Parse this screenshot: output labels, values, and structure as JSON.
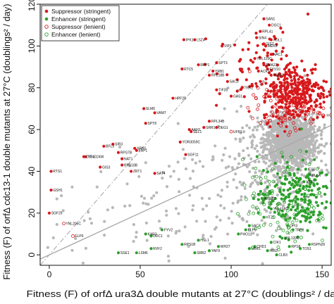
{
  "colors": {
    "suppressor": "#d7191c",
    "enhancer": "#2ca02c",
    "neutral": "#b8b8b8",
    "regression_line": "#aaaaaa",
    "axis": "#111111"
  },
  "chart_data": {
    "type": "scatter",
    "title": "",
    "xlabel": "Fitness (F) of orfΔ ura3Δ double mutants at 27°C (doublings² / day)",
    "ylabel": "Fitness (F) of orfΔ cdc13-1 double mutants at 27°C (doublings² / day)",
    "xlim": [
      -5,
      155
    ],
    "ylim": [
      -5,
      120
    ],
    "x_ticks": [
      0,
      50,
      100,
      150
    ],
    "y_ticks": [
      0,
      20,
      40,
      60,
      80,
      100,
      120
    ],
    "legend": {
      "position": "top-left",
      "entries": [
        {
          "label": "Suppressor (stringent)",
          "marker": "filled",
          "color": "#d7191c"
        },
        {
          "label": "Enhancer (stringent)",
          "marker": "filled",
          "color": "#2ca02c"
        },
        {
          "label": "Suppressor (lenient)",
          "marker": "open",
          "color": "#d7191c"
        },
        {
          "label": "Enhancer (lenient)",
          "marker": "open",
          "color": "#2ca02c"
        }
      ]
    },
    "reference_lines": [
      {
        "name": "identity",
        "style": "dot-dash",
        "slope": 1,
        "intercept": 0
      },
      {
        "name": "regression",
        "style": "solid",
        "slope": 0.4,
        "intercept": 0
      }
    ],
    "clusters": [
      {
        "class": "neutral",
        "cx": 133,
        "cy": 55,
        "sx": 7,
        "sy": 6,
        "n": 1200
      },
      {
        "class": "neutral",
        "cx": 125,
        "cy": 45,
        "sx": 18,
        "sy": 14,
        "n": 320
      },
      {
        "class": "neutral",
        "cx": 70,
        "cy": 22,
        "sx": 35,
        "sy": 14,
        "n": 140
      },
      {
        "class": "suppressor_strict",
        "cx": 135,
        "cy": 78,
        "sx": 9,
        "sy": 7,
        "n": 320
      },
      {
        "class": "suppressor_strict",
        "cx": 120,
        "cy": 88,
        "sx": 14,
        "sy": 10,
        "n": 80
      },
      {
        "class": "suppressor_lenient",
        "cx": 130,
        "cy": 70,
        "sx": 10,
        "sy": 5,
        "n": 90
      },
      {
        "class": "enhancer_strict",
        "cx": 135,
        "cy": 28,
        "sx": 10,
        "sy": 9,
        "n": 200
      },
      {
        "class": "enhancer_lenient",
        "cx": 130,
        "cy": 25,
        "sx": 12,
        "sy": 11,
        "n": 110
      }
    ],
    "points": [
      {
        "x": 1,
        "y": 40,
        "class": "suppressor_strict",
        "label": "RTS1"
      },
      {
        "x": 1,
        "y": 31,
        "class": "suppressor_strict",
        "label": "GSH1"
      },
      {
        "x": 0,
        "y": 20,
        "class": "suppressor_strict",
        "label": "SGF29"
      },
      {
        "x": 8,
        "y": 15,
        "class": "suppressor_lenient",
        "label": "YNL205C"
      },
      {
        "x": 13,
        "y": 9,
        "class": "suppressor_lenient",
        "label": "ELP6"
      },
      {
        "x": 20,
        "y": 47,
        "class": "suppressor_strict",
        "label": "YGL024W"
      },
      {
        "x": 19,
        "y": 47,
        "class": "suppressor_strict",
        "label": "CTF4"
      },
      {
        "x": 28,
        "y": 42,
        "class": "suppressor_strict",
        "label": "GIS3"
      },
      {
        "x": 30,
        "y": 52,
        "class": "suppressor_strict",
        "label": "BFL3"
      },
      {
        "x": 35,
        "y": 53,
        "class": "suppressor_strict",
        "label": "SIR3"
      },
      {
        "x": 40,
        "y": 46,
        "class": "suppressor_strict",
        "label": "NAT1"
      },
      {
        "x": 40,
        "y": 43,
        "class": "suppressor_strict",
        "label": "RPS18B"
      },
      {
        "x": 38,
        "y": 49,
        "class": "suppressor_strict",
        "label": "RPS7B"
      },
      {
        "x": 47,
        "y": 51,
        "class": "suppressor_strict",
        "label": "XRN1"
      },
      {
        "x": 48,
        "y": 50,
        "class": "suppressor_strict",
        "label": "EAF1"
      },
      {
        "x": 45,
        "y": 40,
        "class": "suppressor_strict",
        "label": "ZRT1"
      },
      {
        "x": 53,
        "y": 63,
        "class": "suppressor_strict",
        "label": "SPT8"
      },
      {
        "x": 52,
        "y": 70,
        "class": "suppressor_strict",
        "label": "SLM6"
      },
      {
        "x": 58,
        "y": 68,
        "class": "suppressor_strict",
        "label": "VAM7"
      },
      {
        "x": 68,
        "y": 75,
        "class": "suppressor_strict",
        "label": "HPF2B"
      },
      {
        "x": 73,
        "y": 89,
        "class": "suppressor_strict",
        "label": "RTC5"
      },
      {
        "x": 74,
        "y": 103,
        "class": "suppressor_strict",
        "label": "IPK1"
      },
      {
        "x": 80,
        "y": 103,
        "class": "suppressor_strict",
        "label": "L5Z4"
      },
      {
        "x": 82,
        "y": 91,
        "class": "suppressor_strict",
        "label": "RPP1"
      },
      {
        "x": 88,
        "y": 86,
        "class": "suppressor_strict",
        "label": "RPL18B"
      },
      {
        "x": 92,
        "y": 92,
        "class": "suppressor_strict",
        "label": "SPT3"
      },
      {
        "x": 90,
        "y": 88,
        "class": "suppressor_strict",
        "label": "YRB1"
      },
      {
        "x": 95,
        "y": 100,
        "class": "suppressor_strict",
        "label": "VIP1"
      },
      {
        "x": 113,
        "y": 94,
        "class": "suppressor_strict",
        "label": "YDL119C"
      },
      {
        "x": 115,
        "y": 88,
        "class": "suppressor_strict",
        "label": "ACK1"
      },
      {
        "x": 118,
        "y": 91,
        "class": "suppressor_strict",
        "label": "TMA22"
      },
      {
        "x": 120,
        "y": 89,
        "class": "suppressor_strict",
        "label": "FYV10"
      },
      {
        "x": 122,
        "y": 86,
        "class": "suppressor_strict",
        "label": "ROM2"
      },
      {
        "x": 118,
        "y": 113,
        "class": "suppressor_strict",
        "label": "SAN1"
      },
      {
        "x": 121,
        "y": 110,
        "class": "suppressor_strict",
        "label": "DGC1"
      },
      {
        "x": 116,
        "y": 107,
        "class": "suppressor_strict",
        "label": "RPL41"
      },
      {
        "x": 114,
        "y": 104,
        "class": "suppressor_strict",
        "label": "SIN4"
      },
      {
        "x": 119,
        "y": 100,
        "class": "suppressor_strict",
        "label": "MEK3"
      },
      {
        "x": 122,
        "y": 96,
        "class": "suppressor_strict",
        "label": "NAC1"
      },
      {
        "x": 118,
        "y": 101,
        "class": "suppressor_strict",
        "label": "GIS2"
      },
      {
        "x": 122,
        "y": 103,
        "class": "suppressor_strict",
        "label": "XOL1"
      },
      {
        "x": 92,
        "y": 79,
        "class": "suppressor_strict",
        "label": "TIF35"
      },
      {
        "x": 98,
        "y": 83,
        "class": "suppressor_strict",
        "label": "SAC3"
      },
      {
        "x": 100,
        "y": 76,
        "class": "suppressor_strict",
        "label": "GAS1"
      },
      {
        "x": 106,
        "y": 80,
        "class": "suppressor_strict",
        "label": "TRK1"
      },
      {
        "x": 85,
        "y": 61,
        "class": "suppressor_strict",
        "label": "SRR1"
      },
      {
        "x": 88,
        "y": 64,
        "class": "suppressor_strict",
        "label": "RPL34B"
      },
      {
        "x": 92,
        "y": 61,
        "class": "suppressor_strict",
        "label": "DEG1"
      },
      {
        "x": 100,
        "y": 59,
        "class": "suppressor_lenient",
        "label": "UFP1"
      },
      {
        "x": 77,
        "y": 60,
        "class": "suppressor_strict",
        "label": "AAH1"
      },
      {
        "x": 78,
        "y": 59,
        "class": "suppressor_strict",
        "label": "SEL1"
      },
      {
        "x": 72,
        "y": 54,
        "class": "suppressor_strict",
        "label": "YOR3059C"
      },
      {
        "x": 75,
        "y": 48,
        "class": "suppressor_strict",
        "label": "SGF11"
      },
      {
        "x": 58,
        "y": 39,
        "class": "suppressor_strict",
        "label": "SAT4"
      },
      {
        "x": 141,
        "y": 41,
        "class": "enhancer_strict",
        "label": "IES5"
      },
      {
        "x": 142,
        "y": 38,
        "class": "enhancer_strict",
        "label": "RPL6A"
      },
      {
        "x": 140,
        "y": 35,
        "class": "enhancer_strict",
        "label": "VTS1"
      },
      {
        "x": 117,
        "y": 27,
        "class": "enhancer_strict",
        "label": "ARG82"
      },
      {
        "x": 122,
        "y": 22,
        "class": "enhancer_strict",
        "label": "YPL158C"
      },
      {
        "x": 118,
        "y": 18,
        "class": "enhancer_strict",
        "label": "HTZ1"
      },
      {
        "x": 110,
        "y": 14,
        "class": "enhancer_strict",
        "label": "SAC7"
      },
      {
        "x": 108,
        "y": 12,
        "class": "enhancer_strict",
        "label": "ELP9"
      },
      {
        "x": 104,
        "y": 10,
        "class": "enhancer_strict",
        "label": "PHO13"
      },
      {
        "x": 128,
        "y": 8,
        "class": "enhancer_strict",
        "label": "YNL120C"
      },
      {
        "x": 122,
        "y": 6,
        "class": "enhancer_strict",
        "label": "CIK1"
      },
      {
        "x": 113,
        "y": 4,
        "class": "enhancer_strict",
        "label": "CHD1"
      },
      {
        "x": 110,
        "y": 3,
        "class": "enhancer_strict",
        "label": "UBR1"
      },
      {
        "x": 120,
        "y": 2,
        "class": "enhancer_strict",
        "label": "HIR2"
      },
      {
        "x": 125,
        "y": 0,
        "class": "enhancer_strict",
        "label": "CLB3"
      },
      {
        "x": 132,
        "y": 4,
        "class": "enhancer_strict",
        "label": "RPS8"
      },
      {
        "x": 138,
        "y": 3,
        "class": "enhancer_strict",
        "label": "TOS1"
      },
      {
        "x": 143,
        "y": 5,
        "class": "enhancer_strict",
        "label": "RSPN26"
      },
      {
        "x": 93,
        "y": 4,
        "class": "enhancer_strict",
        "label": "WH27"
      },
      {
        "x": 88,
        "y": 2,
        "class": "enhancer_strict",
        "label": "YAF9"
      },
      {
        "x": 82,
        "y": 7,
        "class": "enhancer_strict",
        "label": "HSL1"
      },
      {
        "x": 73,
        "y": 5,
        "class": "enhancer_strict",
        "label": "RPS1B"
      },
      {
        "x": 62,
        "y": 12,
        "class": "enhancer_strict",
        "label": "FYV2"
      },
      {
        "x": 56,
        "y": 9,
        "class": "enhancer_strict",
        "label": "DDC1"
      },
      {
        "x": 56,
        "y": 3,
        "class": "enhancer_strict",
        "label": "RVF2"
      },
      {
        "x": 53,
        "y": 10,
        "class": "enhancer_strict",
        "label": "KAR3"
      },
      {
        "x": 38,
        "y": 1,
        "class": "enhancer_strict",
        "label": "SSE1"
      },
      {
        "x": 48,
        "y": 1,
        "class": "enhancer_strict",
        "label": "LSM6"
      },
      {
        "x": 80,
        "y": 1,
        "class": "enhancer_strict",
        "label": "SRB2"
      },
      {
        "x": 131,
        "y": 14,
        "class": "enhancer_strict",
        "label": "OPI3"
      },
      {
        "x": 134,
        "y": 12,
        "class": "enhancer_strict",
        "label": "TRP9"
      }
    ]
  }
}
